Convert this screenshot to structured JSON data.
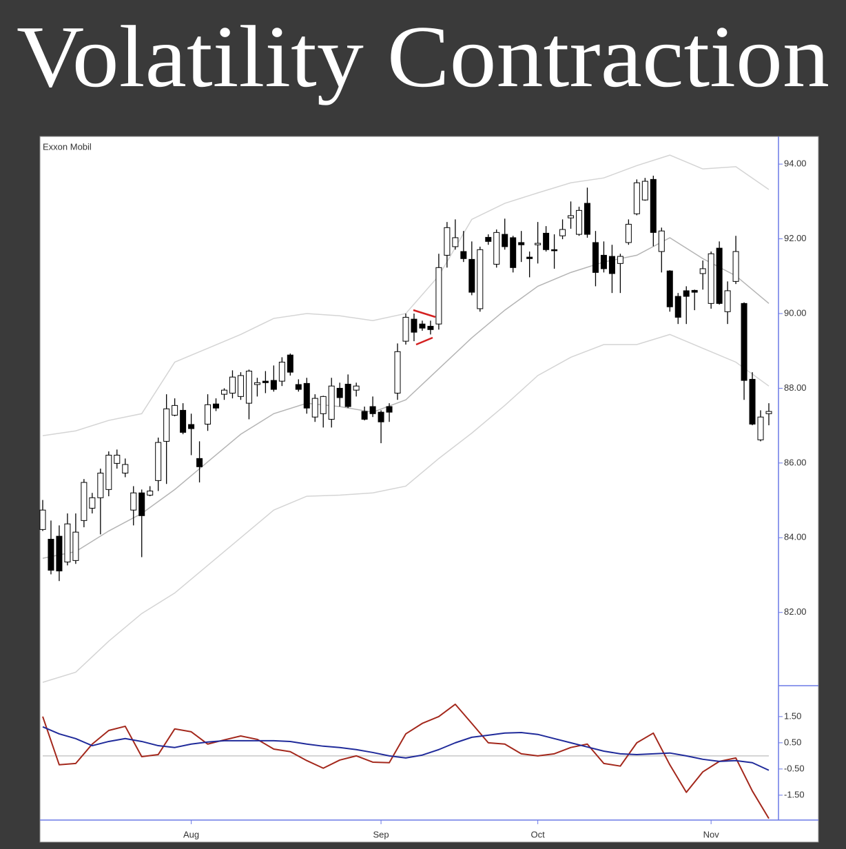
{
  "title": "Volatility Contraction",
  "chart_data": [
    {
      "type": "candlestick",
      "title": "Exxon Mobil",
      "categories": [
        null,
        null,
        null,
        null,
        null,
        null,
        null,
        null,
        null,
        null,
        null,
        null,
        null,
        null,
        null,
        null,
        null,
        null,
        "Aug",
        null,
        null,
        null,
        null,
        null,
        null,
        null,
        null,
        null,
        null,
        null,
        null,
        null,
        null,
        null,
        null,
        null,
        null,
        null,
        null,
        null,
        null,
        "Sep",
        null,
        null,
        null,
        null,
        null,
        null,
        null,
        null,
        null,
        null,
        null,
        null,
        null,
        null,
        null,
        null,
        null,
        null,
        "Oct",
        null,
        null,
        null,
        null,
        null,
        null,
        null,
        null,
        null,
        null,
        null,
        null,
        null,
        null,
        null,
        null,
        null,
        null,
        null,
        null,
        "Nov",
        null,
        null,
        null,
        null,
        null,
        null,
        null
      ],
      "open": [
        84.22,
        83.96,
        84.04,
        83.35,
        83.39,
        84.46,
        84.79,
        85.07,
        85.29,
        85.99,
        85.73,
        84.74,
        85.2,
        85.14,
        85.53,
        86.58,
        87.28,
        87.41,
        87.03,
        86.12,
        87.04,
        87.58,
        87.84,
        87.87,
        87.78,
        87.6,
        88.1,
        88.19,
        88.21,
        88.19,
        88.89,
        88.1,
        88.13,
        87.23,
        87.32,
        87.17,
        88.0,
        88.11,
        87.95,
        87.38,
        87.51,
        87.36,
        87.51,
        87.87,
        89.26,
        89.85,
        89.72,
        89.66,
        89.72,
        91.56,
        91.79,
        91.66,
        91.45,
        90.13,
        92.04,
        91.32,
        92.12,
        92.03,
        91.9,
        91.51,
        91.84,
        92.15,
        91.71,
        92.08,
        92.56,
        92.12,
        92.95,
        91.9,
        91.56,
        91.53,
        91.34,
        91.9,
        92.67,
        93.04,
        93.59,
        91.66,
        91.14,
        90.46,
        90.61,
        90.62,
        91.07,
        90.27,
        91.75,
        90.05,
        90.86,
        90.27,
        88.24,
        86.62,
        87.32
      ],
      "high": [
        85.01,
        84.46,
        84.33,
        84.65,
        84.65,
        85.57,
        85.2,
        85.85,
        86.31,
        86.36,
        86.12,
        85.38,
        85.29,
        85.38,
        86.68,
        87.84,
        87.73,
        87.6,
        87.32,
        86.58,
        87.84,
        87.73,
        88.0,
        88.48,
        88.43,
        88.5,
        88.28,
        88.46,
        88.61,
        88.83,
        88.93,
        88.24,
        88.28,
        87.84,
        87.8,
        88.28,
        88.15,
        88.37,
        88.15,
        87.51,
        87.78,
        87.41,
        87.6,
        89.2,
        90.0,
        90.0,
        89.81,
        89.81,
        91.6,
        92.45,
        92.52,
        92.21,
        91.93,
        91.79,
        92.12,
        92.25,
        92.54,
        92.08,
        92.21,
        91.66,
        92.45,
        92.34,
        92.12,
        92.52,
        93.0,
        92.86,
        93.37,
        92.21,
        91.93,
        91.84,
        91.6,
        92.52,
        93.59,
        93.63,
        93.69,
        92.3,
        91.16,
        90.55,
        90.73,
        90.64,
        91.42,
        91.66,
        91.93,
        90.86,
        92.08,
        90.3,
        88.43,
        87.41,
        87.6
      ],
      "low": [
        84.18,
        83.02,
        82.84,
        83.26,
        83.3,
        84.28,
        84.65,
        84.09,
        85.11,
        85.85,
        85.62,
        84.33,
        83.48,
        85.11,
        85.25,
        85.44,
        87.25,
        86.77,
        86.21,
        85.48,
        86.86,
        87.39,
        87.69,
        87.73,
        87.69,
        87.17,
        87.78,
        87.87,
        87.91,
        88.06,
        88.34,
        87.91,
        87.32,
        87.1,
        86.95,
        86.95,
        87.51,
        87.47,
        87.78,
        87.14,
        87.23,
        86.53,
        87.1,
        87.69,
        89.17,
        89.26,
        89.54,
        89.44,
        89.57,
        91.23,
        91.71,
        91.38,
        90.49,
        90.05,
        91.84,
        91.23,
        91.71,
        91.1,
        91.38,
        90.97,
        91.34,
        91.66,
        91.2,
        91.99,
        92.27,
        92.08,
        92.03,
        90.73,
        91.1,
        90.55,
        90.55,
        91.84,
        92.63,
        93.02,
        91.8,
        91.1,
        90.05,
        89.72,
        89.72,
        90.09,
        90.64,
        90.13,
        90.24,
        89.72,
        90.79,
        87.69,
        87.01,
        86.58,
        87.01
      ],
      "close": [
        84.74,
        83.13,
        83.11,
        84.37,
        84.15,
        85.48,
        85.07,
        85.73,
        86.21,
        86.21,
        85.96,
        85.2,
        84.59,
        85.25,
        86.55,
        87.45,
        87.54,
        86.82,
        86.92,
        85.9,
        87.56,
        87.47,
        87.95,
        88.3,
        88.34,
        88.46,
        88.15,
        88.15,
        87.97,
        88.7,
        88.43,
        87.97,
        87.47,
        87.73,
        87.78,
        88.06,
        87.75,
        87.51,
        88.06,
        87.17,
        87.32,
        87.1,
        87.36,
        88.98,
        89.9,
        89.5,
        89.61,
        89.57,
        91.23,
        92.3,
        92.03,
        91.47,
        90.57,
        91.71,
        91.93,
        92.17,
        91.79,
        91.23,
        91.84,
        91.47,
        91.88,
        91.71,
        91.68,
        92.25,
        92.62,
        92.76,
        92.12,
        91.1,
        91.2,
        91.07,
        91.53,
        92.39,
        93.5,
        93.54,
        92.17,
        92.21,
        90.18,
        89.9,
        90.46,
        90.57,
        91.2,
        91.6,
        90.27,
        90.61,
        91.66,
        88.21,
        87.04,
        87.23,
        87.38
      ],
      "up_color": "#ffffff",
      "down_color": "#000000",
      "ylim": [
        80.04,
        94.74
      ],
      "yticks": [
        {
          "value": 94,
          "label": "94.00"
        },
        {
          "value": 92,
          "label": "92.00"
        },
        {
          "value": 90,
          "label": "90.00"
        },
        {
          "value": 88,
          "label": "88.00"
        },
        {
          "value": 86,
          "label": "86.00"
        },
        {
          "value": 84,
          "label": "84.00"
        },
        {
          "value": 82,
          "label": "82.00"
        }
      ],
      "series": [
        {
          "color": "#d4d4d4",
          "x": [
            0,
            4,
            8,
            12,
            16,
            20,
            24,
            28,
            32,
            36,
            40,
            44,
            48,
            52,
            56,
            60,
            64,
            68,
            72,
            76,
            80,
            84,
            88
          ],
          "values": [
            86.73,
            86.86,
            87.14,
            87.32,
            88.7,
            89.07,
            89.44,
            89.87,
            90.0,
            89.94,
            89.81,
            90.0,
            91.01,
            92.52,
            92.95,
            93.23,
            93.5,
            93.63,
            93.96,
            94.24,
            93.87,
            93.93,
            93.32
          ]
        },
        {
          "color": "#b4b4b4",
          "x": [
            0,
            4,
            8,
            12,
            16,
            20,
            24,
            28,
            32,
            36,
            40,
            44,
            48,
            52,
            56,
            60,
            64,
            68,
            72,
            76,
            80,
            84,
            88
          ],
          "values": [
            83.45,
            83.63,
            84.18,
            84.65,
            85.29,
            86.03,
            86.77,
            87.32,
            87.6,
            87.51,
            87.36,
            87.69,
            88.52,
            89.35,
            90.09,
            90.73,
            91.1,
            91.38,
            91.56,
            92.03,
            91.47,
            91.01,
            90.27
          ]
        },
        {
          "color": "#d4d4d4",
          "x": [
            0,
            4,
            8,
            12,
            16,
            20,
            24,
            28,
            32,
            36,
            40,
            44,
            48,
            52,
            56,
            60,
            64,
            68,
            72,
            76,
            80,
            84,
            88
          ],
          "values": [
            80.13,
            80.4,
            81.23,
            81.97,
            82.52,
            83.26,
            84.0,
            84.74,
            85.11,
            85.14,
            85.2,
            85.38,
            86.12,
            86.8,
            87.54,
            88.34,
            88.83,
            89.17,
            89.17,
            89.44,
            89.07,
            88.7,
            88.06
          ]
        }
      ]
    },
    {
      "type": "line",
      "x": [
        0,
        2,
        4,
        6,
        8,
        10,
        12,
        14,
        16,
        18,
        20,
        22,
        24,
        26,
        28,
        30,
        32,
        34,
        36,
        38,
        40,
        42,
        44,
        46,
        48,
        50,
        52,
        54,
        56,
        58,
        60,
        62,
        64,
        66,
        68,
        70,
        72,
        74,
        76,
        78,
        80,
        82,
        84,
        86,
        88
      ],
      "ylim": [
        -2.45,
        2.68
      ],
      "yticks": [
        {
          "value": 1.5,
          "label": "1.50"
        },
        {
          "value": 0.5,
          "label": "0.50"
        },
        {
          "value": -0.5,
          "label": "-0.50"
        },
        {
          "value": -1.5,
          "label": "-1.50"
        }
      ],
      "reference_line": 0,
      "series": [
        {
          "color": "#a3271b",
          "values": [
            1.5,
            -0.34,
            -0.29,
            0.45,
            0.97,
            1.13,
            -0.03,
            0.05,
            1.03,
            0.92,
            0.45,
            0.61,
            0.76,
            0.63,
            0.26,
            0.16,
            -0.18,
            -0.47,
            -0.16,
            0.0,
            -0.24,
            -0.26,
            0.84,
            1.24,
            1.5,
            1.97,
            1.24,
            0.5,
            0.45,
            0.08,
            0.0,
            0.08,
            0.32,
            0.45,
            -0.29,
            -0.39,
            0.5,
            0.87,
            -0.34,
            -1.39,
            -0.61,
            -0.21,
            -0.08,
            -1.34,
            -2.39
          ]
        },
        {
          "color": "#1f2a9a",
          "values": [
            1.11,
            0.84,
            0.66,
            0.39,
            0.55,
            0.66,
            0.55,
            0.39,
            0.32,
            0.45,
            0.53,
            0.58,
            0.58,
            0.58,
            0.58,
            0.55,
            0.45,
            0.37,
            0.32,
            0.24,
            0.13,
            0.0,
            -0.08,
            0.03,
            0.24,
            0.5,
            0.71,
            0.79,
            0.87,
            0.89,
            0.82,
            0.66,
            0.5,
            0.34,
            0.18,
            0.08,
            0.05,
            0.08,
            0.11,
            0.0,
            -0.13,
            -0.21,
            -0.18,
            -0.26,
            -0.55
          ]
        }
      ]
    }
  ]
}
